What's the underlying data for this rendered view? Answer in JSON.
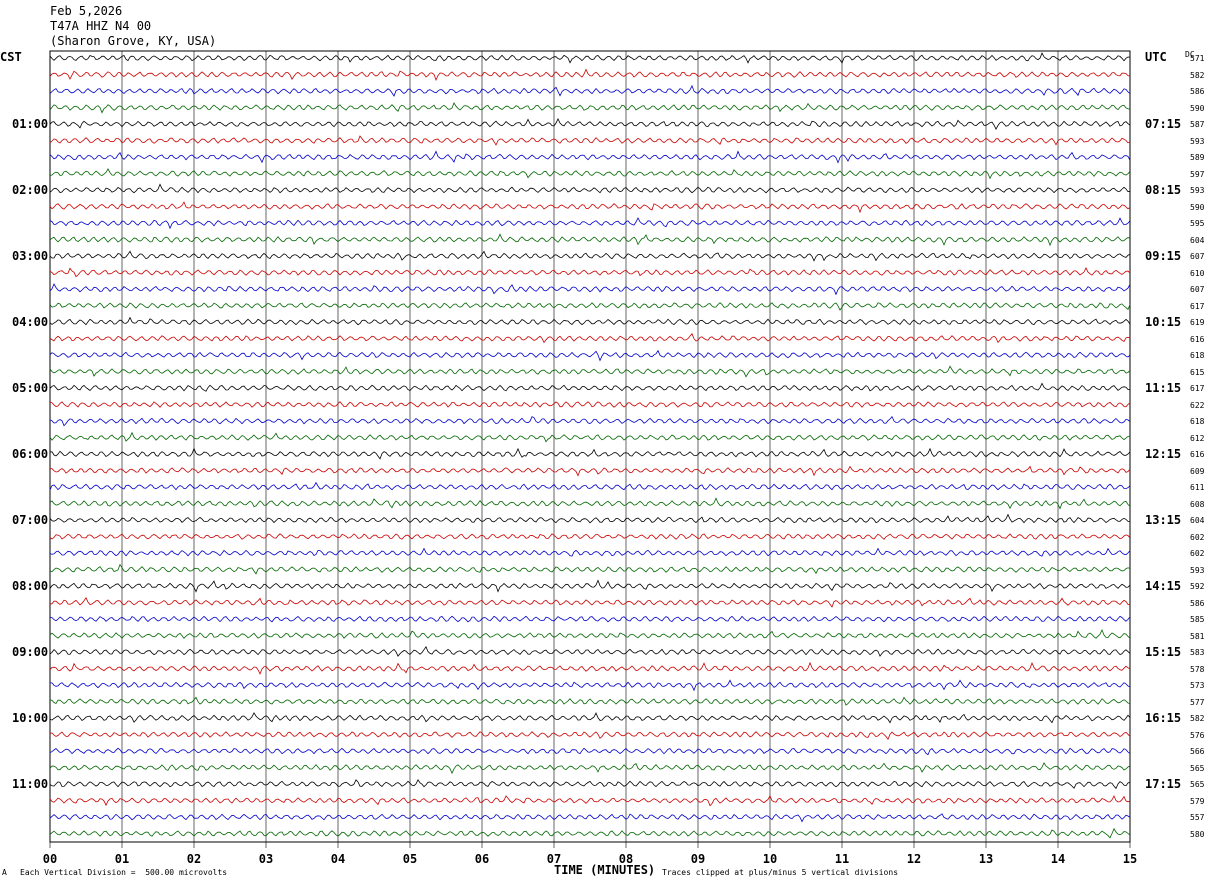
{
  "header": {
    "date": "Feb 5,2026",
    "station": "T47A HHZ N4 00",
    "location": "(Sharon Grove, KY, USA)"
  },
  "corner": {
    "left_tz": "CST",
    "right_tz": "UTC",
    "dc_label": "DC"
  },
  "footer": {
    "scale": "Each Vertical Division =  500.00 microvolts",
    "clip": "Traces clipped at plus/minus 5 vertical divisions",
    "mark": "A"
  },
  "colors": {
    "trace_cycle": [
      "#000000",
      "#cc0000",
      "#0000cc",
      "#006600"
    ],
    "grid": "#000000"
  },
  "chart_data": {
    "type": "line",
    "title": "",
    "xlabel": "TIME (MINUTES)",
    "xlim": [
      0,
      15
    ],
    "x_ticks": [
      "00",
      "01",
      "02",
      "03",
      "04",
      "05",
      "06",
      "07",
      "08",
      "09",
      "10",
      "11",
      "12",
      "13",
      "14",
      "15"
    ],
    "left_hour_labels": [
      "01:00",
      "02:00",
      "03:00",
      "04:00",
      "05:00",
      "06:00",
      "07:00",
      "08:00",
      "09:00",
      "10:00",
      "11:00"
    ],
    "right_hour_labels": [
      "07:15",
      "08:15",
      "09:15",
      "10:15",
      "11:15",
      "12:15",
      "13:15",
      "14:15",
      "15:15",
      "16:15",
      "17:15"
    ],
    "trace_dc_offsets": [
      571,
      582,
      586,
      590,
      587,
      593,
      589,
      597,
      593,
      590,
      595,
      604,
      607,
      610,
      607,
      617,
      619,
      616,
      618,
      615,
      617,
      622,
      618,
      612,
      616,
      609,
      611,
      608,
      604,
      602,
      602,
      593,
      592,
      586,
      585,
      581,
      583,
      578,
      573,
      577,
      582,
      576,
      566,
      565,
      565,
      579,
      557,
      580
    ],
    "trace_count": 48,
    "traces_per_hour": 4
  }
}
